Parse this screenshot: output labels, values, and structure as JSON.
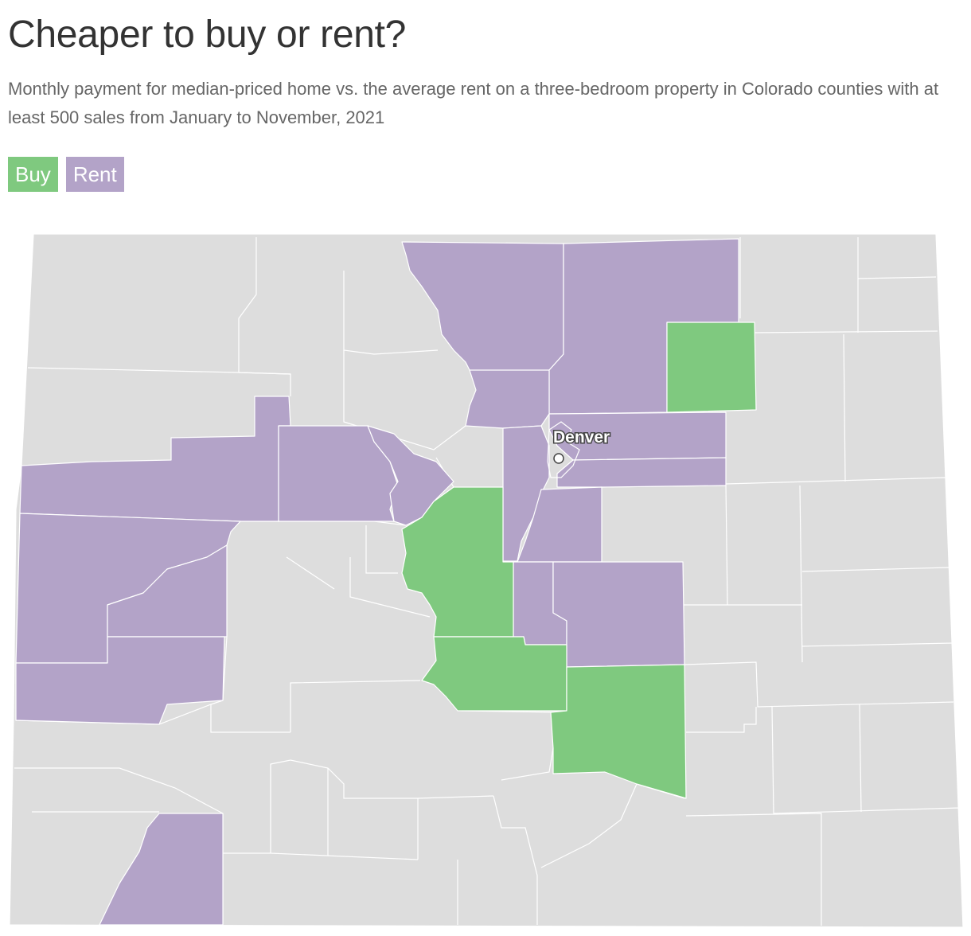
{
  "header": {
    "title": "Cheaper to buy or rent?",
    "subtitle": "Monthly payment for median-priced home vs. the average rent on a three-bedroom property in Colorado counties with at least 500 sales from January to November, 2021"
  },
  "legend": {
    "items": [
      {
        "label": "Buy",
        "color": "#7fc97f"
      },
      {
        "label": "Rent",
        "color": "#b3a3c8"
      }
    ]
  },
  "map": {
    "region": "Colorado",
    "colors": {
      "buy": "#7fc97f",
      "rent": "#b3a3c8",
      "no_data": "#dddddd",
      "border": "#ffffff"
    },
    "city": {
      "label": "Denver"
    }
  }
}
